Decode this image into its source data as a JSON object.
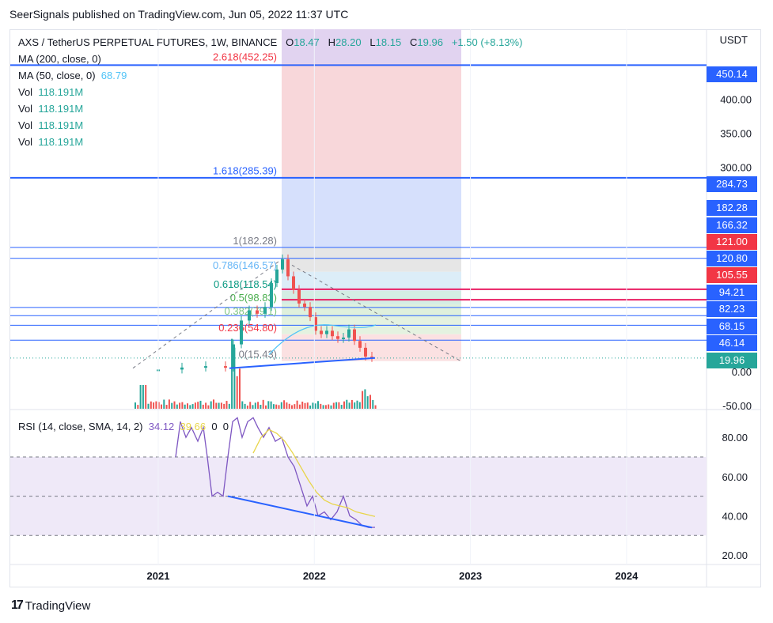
{
  "header": {
    "publisher": "SeerSignals published on TradingView.com, Jun 05, 2022 11:37 UTC"
  },
  "legend": {
    "symbol": "AXS / TetherUS PERPETUAL FUTURES, 1W, BINANCE",
    "ohlc": {
      "o_label": "O",
      "o": "18.47",
      "h_label": "H",
      "h": "28.20",
      "l_label": "L",
      "l": "18.15",
      "c_label": "C",
      "c": "19.96",
      "change": "+1.50 (+8.13%)"
    },
    "ma200": "MA (200, close, 0)",
    "ma50": "MA (50, close, 0)",
    "ma50_value": "68.79",
    "vol_rows": [
      {
        "label": "Vol",
        "value": "118.191M"
      },
      {
        "label": "Vol",
        "value": "118.191M"
      },
      {
        "label": "Vol",
        "value": "118.191M"
      },
      {
        "label": "Vol",
        "value": "118.191M"
      }
    ],
    "rsi": "RSI (14, close, SMA, 14, 2)",
    "rsi_value": "34.12",
    "rsi_sma": "39.66",
    "rsi_extra1": "0",
    "rsi_extra2": "0"
  },
  "axis": {
    "currency": "USDT",
    "price_ticks": [
      "400.00",
      "350.00",
      "300.00",
      "0.00",
      "-50.00"
    ],
    "rsi_ticks": [
      "80.00",
      "60.00",
      "40.00",
      "20.00"
    ],
    "time_ticks": [
      "2021",
      "2022",
      "2023",
      "2024"
    ]
  },
  "price_tags": [
    {
      "text": "450.14",
      "color": "#2962ff"
    },
    {
      "text": "284.73",
      "color": "#2962ff"
    },
    {
      "text": "182.28",
      "color": "#2962ff"
    },
    {
      "text": "166.32",
      "color": "#2962ff"
    },
    {
      "text": "121.00",
      "color": "#f23645"
    },
    {
      "text": "120.80",
      "color": "#2962ff"
    },
    {
      "text": "105.55",
      "color": "#f23645"
    },
    {
      "text": "94.21",
      "color": "#2962ff"
    },
    {
      "text": "82.23",
      "color": "#2962ff"
    },
    {
      "text": "68.15",
      "color": "#2962ff"
    },
    {
      "text": "46.14",
      "color": "#2962ff"
    },
    {
      "text": "19.96",
      "color": "#26a69a"
    }
  ],
  "fib_labels": [
    {
      "text": "2.618(452.25)",
      "color": "#f23645"
    },
    {
      "text": "1.618(285.39)",
      "color": "#2962ff"
    },
    {
      "text": "1(182.28)",
      "color": "#787b86"
    },
    {
      "text": "0.786(146.57)",
      "color": "#64b5f6"
    },
    {
      "text": "0.618(118.54)",
      "color": "#089981"
    },
    {
      "text": "0.5(98.83)",
      "color": "#4caf50"
    },
    {
      "text": "0.382(79.1)",
      "color": "#81c784"
    },
    {
      "text": "0.236(54.80)",
      "color": "#f23645"
    },
    {
      "text": "0(15.43)",
      "color": "#787b86"
    }
  ],
  "footer": {
    "brand": "TradingView"
  },
  "chart_data": {
    "type": "candlestick",
    "title": "AXS / TetherUS PERPETUAL FUTURES, 1W, BINANCE",
    "ylabel": "USDT",
    "ylim": [
      -50,
      470
    ],
    "x_ticks": [
      "2021",
      "2022",
      "2023",
      "2024"
    ],
    "last_bar": {
      "open": 18.47,
      "high": 28.2,
      "low": 18.15,
      "close": 19.96,
      "change": 1.5,
      "change_pct": 8.13
    },
    "fibonacci_levels": [
      {
        "ratio": 2.618,
        "price": 452.25
      },
      {
        "ratio": 1.618,
        "price": 285.39
      },
      {
        "ratio": 1,
        "price": 182.28
      },
      {
        "ratio": 0.786,
        "price": 146.57
      },
      {
        "ratio": 0.618,
        "price": 118.54
      },
      {
        "ratio": 0.5,
        "price": 98.83
      },
      {
        "ratio": 0.382,
        "price": 79.1
      },
      {
        "ratio": 0.236,
        "price": 54.8
      },
      {
        "ratio": 0,
        "price": 15.43
      }
    ],
    "ma50_last": 68.79,
    "volume_last": "118.191M",
    "rsi": {
      "period": 14,
      "value": 34.12,
      "sma": 39.66,
      "ylim": [
        20,
        90
      ],
      "bands": [
        70,
        50,
        30
      ]
    }
  }
}
